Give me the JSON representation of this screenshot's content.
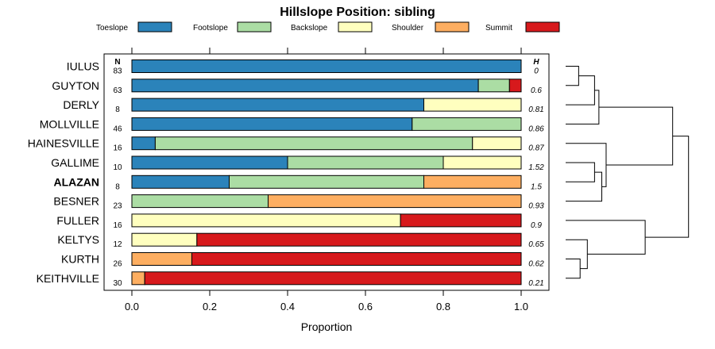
{
  "chart_data": {
    "type": "bar",
    "stacked": true,
    "orientation": "horizontal",
    "title": "Hillslope Position: sibling",
    "xlabel": "Proportion",
    "ylabel": "",
    "xlim": [
      0,
      1
    ],
    "x_ticks": [
      0.0,
      0.2,
      0.4,
      0.6,
      0.8,
      1.0
    ],
    "x_tick_labels": [
      "0.0",
      "0.2",
      "0.4",
      "0.6",
      "0.8",
      "1.0"
    ],
    "n_header": "N",
    "h_header": "H",
    "legend": [
      {
        "name": "Toeslope",
        "color": "#2b83ba"
      },
      {
        "name": "Footslope",
        "color": "#abdda4"
      },
      {
        "name": "Backslope",
        "color": "#ffffbf"
      },
      {
        "name": "Shoulder",
        "color": "#fdae61"
      },
      {
        "name": "Summit",
        "color": "#d7191c"
      }
    ],
    "legend_position": "top",
    "rows": [
      {
        "name": "IULUS",
        "n": "83",
        "h": "0",
        "bold": false,
        "values": [
          1.0,
          0,
          0,
          0,
          0
        ]
      },
      {
        "name": "GUYTON",
        "n": "63",
        "h": "0.6",
        "bold": false,
        "values": [
          0.89,
          0.08,
          0,
          0,
          0.03
        ]
      },
      {
        "name": "DERLY",
        "n": "8",
        "h": "0.81",
        "bold": false,
        "values": [
          0.75,
          0,
          0.25,
          0,
          0
        ]
      },
      {
        "name": "MOLLVILLE",
        "n": "46",
        "h": "0.86",
        "bold": false,
        "values": [
          0.72,
          0.28,
          0,
          0,
          0
        ]
      },
      {
        "name": "HAINESVILLE",
        "n": "16",
        "h": "0.87",
        "bold": false,
        "values": [
          0.06,
          0.815,
          0.125,
          0,
          0
        ]
      },
      {
        "name": "GALLIME",
        "n": "10",
        "h": "1.52",
        "bold": false,
        "values": [
          0.4,
          0.4,
          0.2,
          0,
          0
        ]
      },
      {
        "name": "ALAZAN",
        "n": "8",
        "h": "1.5",
        "bold": true,
        "values": [
          0.25,
          0.5,
          0,
          0.25,
          0
        ]
      },
      {
        "name": "BESNER",
        "n": "23",
        "h": "0.93",
        "bold": false,
        "values": [
          0,
          0.35,
          0,
          0.65,
          0
        ]
      },
      {
        "name": "FULLER",
        "n": "16",
        "h": "0.9",
        "bold": false,
        "values": [
          0,
          0,
          0.69,
          0,
          0.31
        ]
      },
      {
        "name": "KELTYS",
        "n": "12",
        "h": "0.65",
        "bold": false,
        "values": [
          0,
          0,
          0.167,
          0,
          0.833
        ]
      },
      {
        "name": "KURTH",
        "n": "26",
        "h": "0.62",
        "bold": false,
        "values": [
          0,
          0,
          0,
          0.154,
          0.846
        ]
      },
      {
        "name": "KEITHVILLE",
        "n": "30",
        "h": "0.21",
        "bold": false,
        "values": [
          0,
          0,
          0,
          0.033,
          0.967
        ]
      }
    ],
    "dendrogram": {
      "leaf_order": [
        "IULUS",
        "GUYTON",
        "DERLY",
        "MOLLVILLE",
        "HAINESVILLE",
        "GALLIME",
        "ALAZAN",
        "BESNER",
        "FULLER",
        "KELTYS",
        "KURTH",
        "KEITHVILLE"
      ],
      "merges": [
        {
          "a": "L0",
          "b": "L1",
          "height": 0.09
        },
        {
          "a": "M0",
          "b": "L2",
          "height": 0.2
        },
        {
          "a": "M1",
          "b": "L3",
          "height": 0.23
        },
        {
          "a": "L5",
          "b": "L6",
          "height": 0.2
        },
        {
          "a": "M3",
          "b": "L7",
          "height": 0.25
        },
        {
          "a": "L4",
          "b": "M4",
          "height": 0.28
        },
        {
          "a": "M2",
          "b": "M5",
          "height": 0.74
        },
        {
          "a": "L10",
          "b": "L11",
          "height": 0.1
        },
        {
          "a": "L9",
          "b": "M7",
          "height": 0.15
        },
        {
          "a": "L8",
          "b": "M8",
          "height": 0.55
        },
        {
          "a": "M6",
          "b": "M9",
          "height": 0.85
        }
      ]
    }
  }
}
